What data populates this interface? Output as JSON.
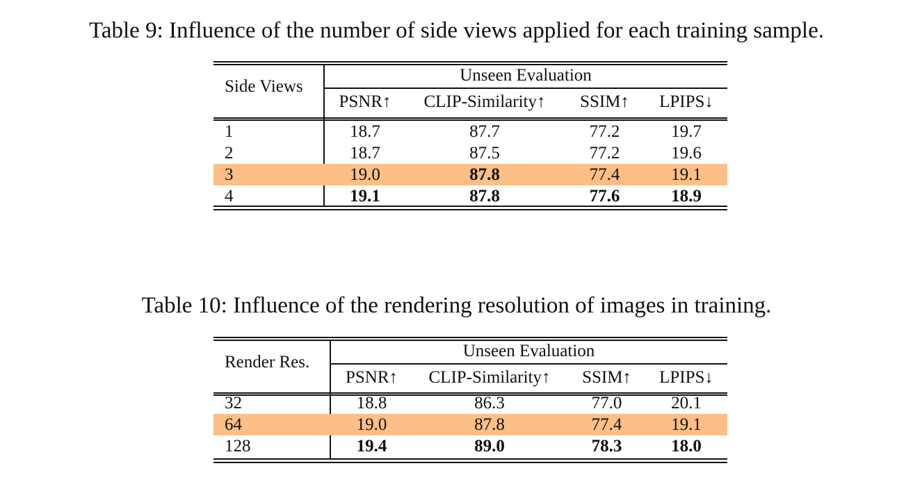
{
  "highlight_color": "#fbbf87",
  "table9": {
    "caption": "Table 9: Influence of the number of side views applied for each training sample.",
    "row_header": "Side Views",
    "group_header": "Unseen Evaluation",
    "columns": [
      "PSNR↑",
      "CLIP-Similarity↑",
      "SSIM↑",
      "LPIPS↓"
    ],
    "rows": [
      {
        "label": "1",
        "values": [
          "18.7",
          "87.7",
          "77.2",
          "19.7"
        ],
        "bold": [
          false,
          false,
          false,
          false
        ],
        "highlight": false
      },
      {
        "label": "2",
        "values": [
          "18.7",
          "87.5",
          "77.2",
          "19.6"
        ],
        "bold": [
          false,
          false,
          false,
          false
        ],
        "highlight": false
      },
      {
        "label": "3",
        "values": [
          "19.0",
          "87.8",
          "77.4",
          "19.1"
        ],
        "bold": [
          false,
          true,
          false,
          false
        ],
        "highlight": true
      },
      {
        "label": "4",
        "values": [
          "19.1",
          "87.8",
          "77.6",
          "18.9"
        ],
        "bold": [
          true,
          true,
          true,
          true
        ],
        "highlight": false
      }
    ]
  },
  "table10": {
    "caption": "Table 10: Influence of the rendering resolution of images in training.",
    "row_header": "Render Res.",
    "group_header": "Unseen Evaluation",
    "columns": [
      "PSNR↑",
      "CLIP-Similarity↑",
      "SSIM↑",
      "LPIPS↓"
    ],
    "rows": [
      {
        "label": "32",
        "values": [
          "18.8",
          "86.3",
          "77.0",
          "20.1"
        ],
        "bold": [
          false,
          false,
          false,
          false
        ],
        "highlight": false
      },
      {
        "label": "64",
        "values": [
          "19.0",
          "87.8",
          "77.4",
          "19.1"
        ],
        "bold": [
          false,
          false,
          false,
          false
        ],
        "highlight": true
      },
      {
        "label": "128",
        "values": [
          "19.4",
          "89.0",
          "78.3",
          "18.0"
        ],
        "bold": [
          true,
          true,
          true,
          true
        ],
        "highlight": false
      }
    ]
  }
}
